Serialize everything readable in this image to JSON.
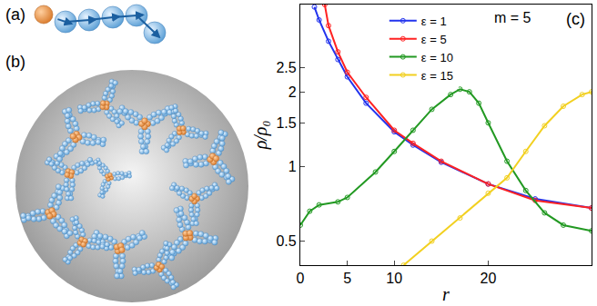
{
  "panels": {
    "a": {
      "label": "(a)"
    },
    "b": {
      "label": "(b)"
    }
  },
  "chart_data": {
    "type": "line",
    "x_label": "r",
    "y_label": "ρ/ρ₀",
    "annotations": [
      {
        "text": "m = 5"
      },
      {
        "text": "(c)"
      }
    ],
    "log": "y",
    "xlim": [
      0,
      31
    ],
    "xticks": [
      0,
      5,
      10,
      20
    ],
    "ylim": [
      0.4,
      4.5
    ],
    "yticks": [
      0.5,
      1,
      1.5,
      2,
      2.5
    ],
    "legend": "top",
    "marker": "circle-open",
    "series": [
      {
        "name": "ε = 1",
        "color": "#2233ee",
        "x": [
          1.5,
          2,
          3,
          4,
          5,
          7,
          10,
          12,
          15,
          20,
          25,
          31
        ],
        "values": [
          4.4,
          3.9,
          3.2,
          2.7,
          2.3,
          1.8,
          1.38,
          1.22,
          1.04,
          0.85,
          0.74,
          0.68
        ]
      },
      {
        "name": "ε = 5",
        "color": "#ff2222",
        "x": [
          2.6,
          3,
          4,
          5,
          7,
          10,
          12,
          15,
          20,
          25,
          31
        ],
        "values": [
          4.5,
          3.7,
          2.9,
          2.4,
          1.9,
          1.4,
          1.24,
          1.05,
          0.85,
          0.73,
          0.68
        ]
      },
      {
        "name": "ε = 10",
        "color": "#229922",
        "x": [
          0,
          1,
          2,
          4,
          5,
          8,
          10,
          12,
          14,
          16,
          17,
          18,
          19,
          20,
          22,
          24,
          26,
          28,
          31
        ],
        "values": [
          0.58,
          0.66,
          0.7,
          0.72,
          0.75,
          0.95,
          1.15,
          1.4,
          1.7,
          1.95,
          2.05,
          2.0,
          1.8,
          1.5,
          1.05,
          0.8,
          0.65,
          0.58,
          0.55
        ]
      },
      {
        "name": "ε = 15",
        "color": "#f2d020",
        "x": [
          11,
          14,
          17,
          20,
          22,
          24,
          26,
          28,
          30,
          31
        ],
        "values": [
          0.4,
          0.5,
          0.62,
          0.78,
          0.9,
          1.15,
          1.46,
          1.75,
          1.95,
          2.0
        ]
      }
    ]
  }
}
